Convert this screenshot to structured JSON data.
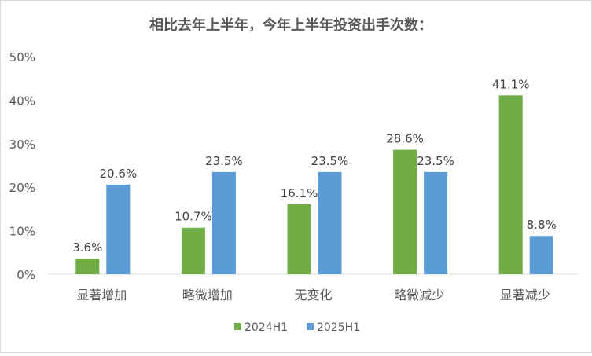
{
  "chart_data": {
    "type": "bar",
    "title": "相比去年上半年，今年上半年投资出手次数：",
    "categories": [
      "显著增加",
      "略微增加",
      "无变化",
      "略微减少",
      "显著减少"
    ],
    "series": [
      {
        "name": "2024H1",
        "values": [
          3.6,
          10.7,
          16.1,
          28.6,
          41.1
        ],
        "color": "#70AD47"
      },
      {
        "name": "2025H1",
        "values": [
          20.6,
          23.5,
          23.5,
          23.5,
          8.8
        ],
        "color": "#5B9BD5"
      }
    ],
    "ylim": [
      0,
      50
    ],
    "yticks": [
      "0%",
      "10%",
      "20%",
      "30%",
      "40%",
      "50%"
    ],
    "value_format": "percent_1dp",
    "grid": false,
    "legend": "bottom"
  }
}
